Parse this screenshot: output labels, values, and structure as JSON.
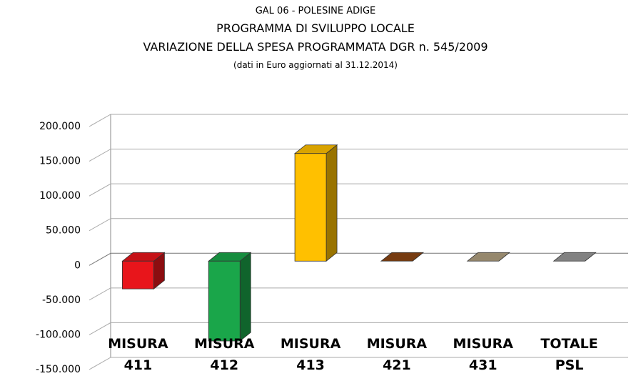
{
  "chart_data": {
    "type": "bar",
    "title": "GAL 06 - POLESINE ADIGE",
    "subtitle": "PROGRAMMA DI SVILUPPO LOCALE",
    "subtitle2": "VARIAZIONE DELLA SPESA PROGRAMMATA DGR n. 545/2009",
    "note": "(dati in Euro aggiornati al 31.12.2014)",
    "categories": [
      "MISURA 411",
      "MISURA 412",
      "MISURA 413",
      "MISURA 421",
      "MISURA 431",
      "TOTALE PSL"
    ],
    "values": [
      -40000,
      -115000,
      155000,
      0,
      0,
      0
    ],
    "colors": [
      "#e8151b",
      "#1aa64a",
      "#ffc000",
      "#8b4513",
      "#b0a080",
      "#999999"
    ],
    "ylim": [
      -150000,
      200000
    ],
    "yticks": [
      {
        "value": -150000,
        "label": "-150.000"
      },
      {
        "value": -100000,
        "label": "-100.000"
      },
      {
        "value": -50000,
        "label": "-50.000"
      },
      0,
      {
        "value": 50000,
        "label": "50.000"
      },
      {
        "value": 100000,
        "label": "100.000"
      },
      {
        "value": 150000,
        "label": "150.000"
      },
      {
        "value": 200000,
        "label": "200.000"
      }
    ],
    "grid": true
  }
}
